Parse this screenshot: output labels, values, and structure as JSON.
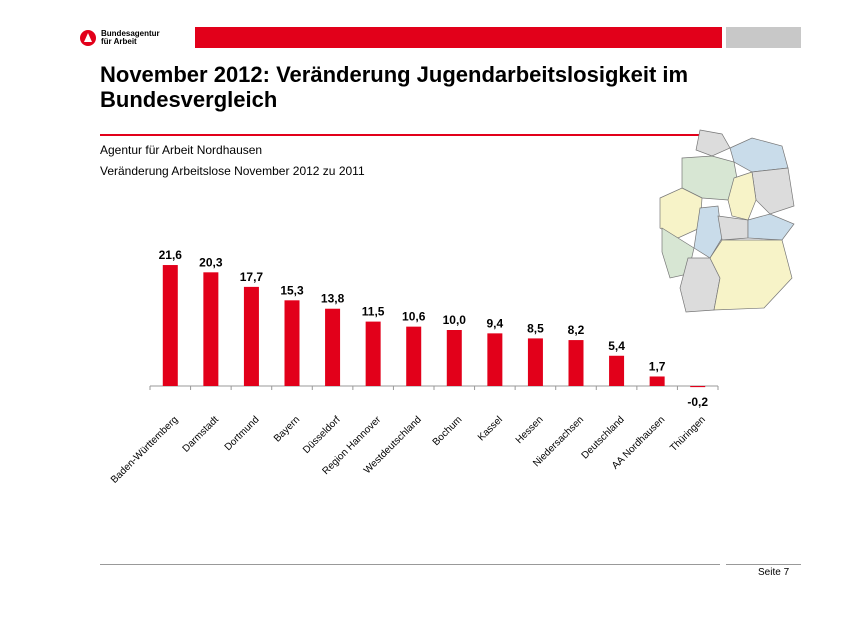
{
  "header": {
    "logo_text_1": "Bundesagentur",
    "logo_text_2": "für Arbeit"
  },
  "title": "November 2012: Veränderung Jugendarbeitslosigkeit im Bundesvergleich",
  "subtitle_1": "Agentur für Arbeit Nordhausen",
  "subtitle_2": "Veränderung Arbeitslose November 2012 zu 2011",
  "footer": {
    "page": "Seite 7"
  },
  "colors": {
    "accent": "#e2001a"
  },
  "chart_data": {
    "type": "bar",
    "categories": [
      "Baden-Württemberg",
      "Darmstadt",
      "Dortmund",
      "Bayern",
      "Düsseldorf",
      "Region Hannover",
      "Westdeutschland",
      "Bochum",
      "Kassel",
      "Hessen",
      "Niedersachsen",
      "Deutschland",
      "AA Nordhausen",
      "Thüringen"
    ],
    "values": [
      21.6,
      20.3,
      17.7,
      15.3,
      13.8,
      11.5,
      10.6,
      10.0,
      9.4,
      8.5,
      8.2,
      5.4,
      1.7,
      -0.2
    ],
    "data_labels": [
      "21,6",
      "20,3",
      "17,7",
      "15,3",
      "13,8",
      "11,5",
      "10,6",
      "10,0",
      "9,4",
      "8,5",
      "8,2",
      "5,4",
      "1,7",
      "-0,2"
    ],
    "bar_color": "#e2001a",
    "grid": false,
    "legend": "none"
  }
}
